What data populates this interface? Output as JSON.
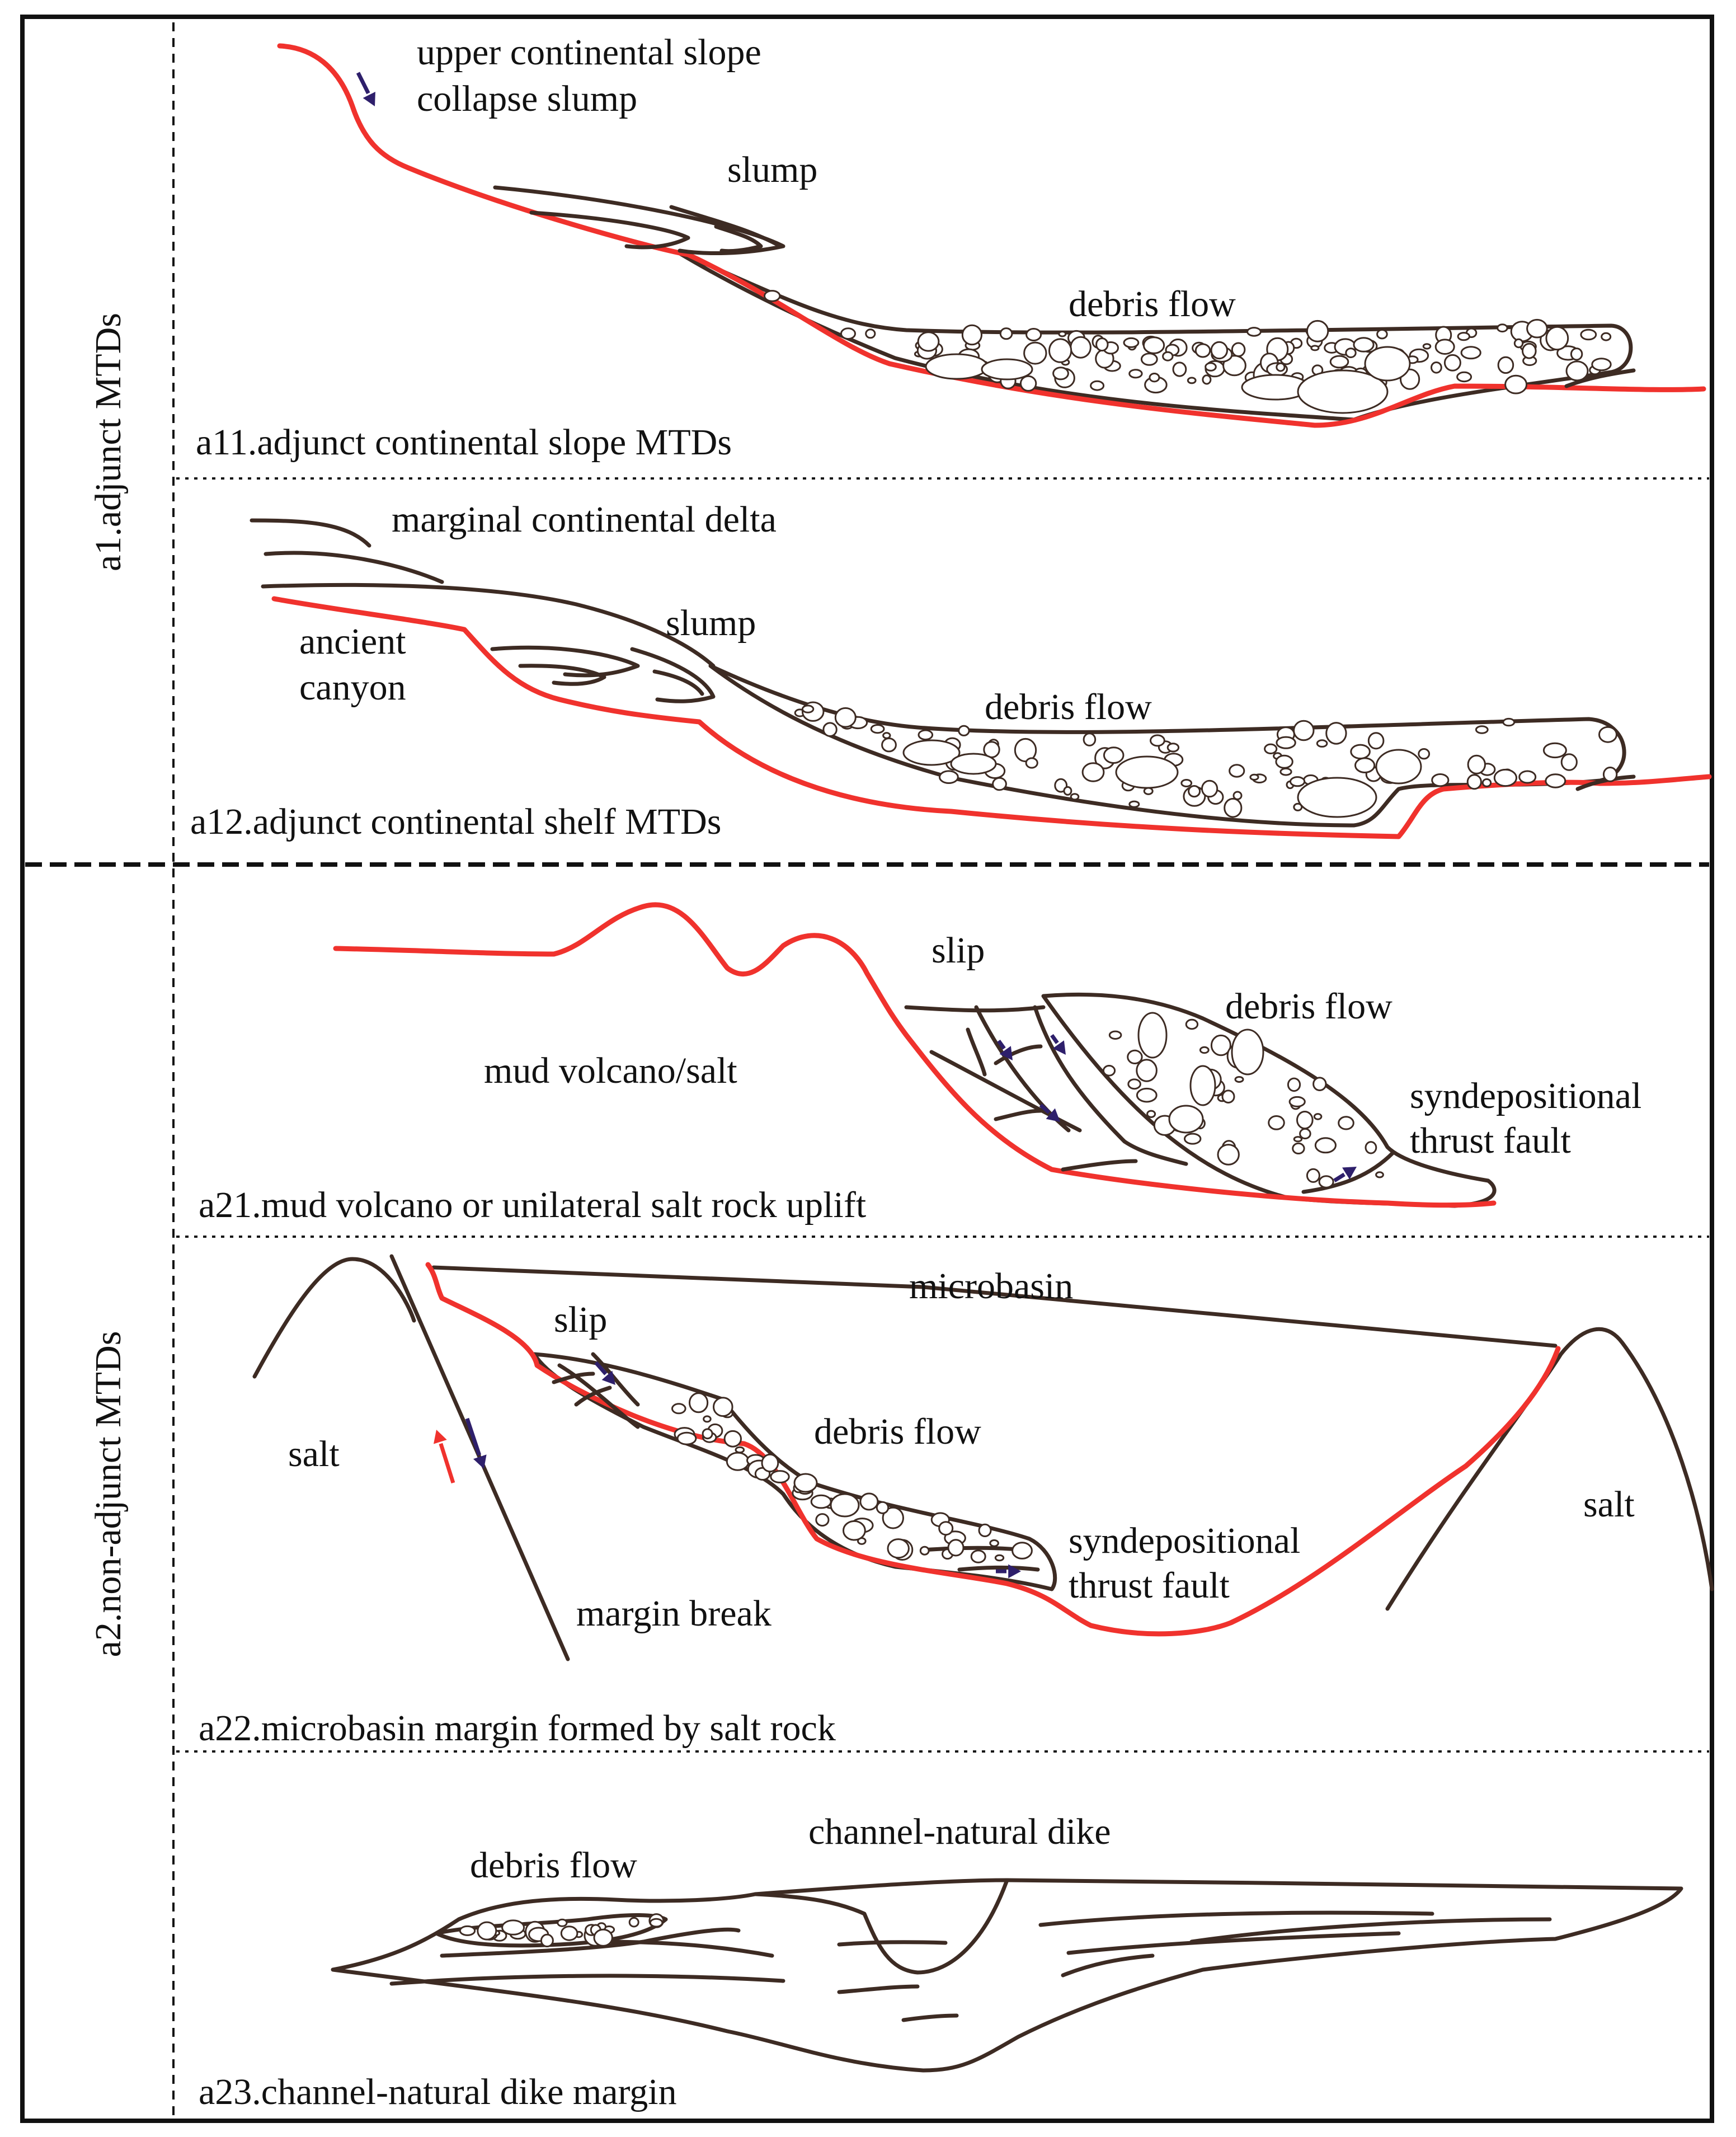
{
  "colors": {
    "basal_surface": "#f0322d",
    "deposit_outline": "#3d2b23",
    "motion_arrow": "#2e1f6b",
    "opposite_arrow": "#f0322d",
    "frame": "#111111"
  },
  "groups": [
    {
      "id": "a1",
      "title": "a1.adjunct MTDs"
    },
    {
      "id": "a2",
      "title": "a2.non-adjunct MTDs"
    }
  ],
  "panels": {
    "a11": {
      "caption": "a11.adjunct continental slope MTDs",
      "labels": {
        "upper_slope_line1": "upper continental slope",
        "upper_slope_line2": "collapse slump",
        "slump": "slump",
        "debris_flow": "debris flow"
      }
    },
    "a12": {
      "caption": "a12.adjunct continental shelf MTDs",
      "labels": {
        "delta": "marginal continental delta",
        "canyon_line1": "ancient",
        "canyon_line2": "canyon",
        "slump": "slump",
        "debris_flow": "debris flow"
      }
    },
    "a21": {
      "caption": "a21.mud volcano or unilateral salt rock uplift",
      "labels": {
        "slip": "slip",
        "debris_flow": "debris flow",
        "mud_volcano": "mud volcano/salt",
        "thrust_line1": "syndepositional",
        "thrust_line2": "thrust fault"
      }
    },
    "a22": {
      "caption": "a22.microbasin margin formed by salt rock",
      "labels": {
        "microbasin": "microbasin",
        "slip": "slip",
        "debris_flow": "debris flow",
        "salt_left": "salt",
        "salt_right": "salt",
        "thrust_line1": "syndepositional",
        "thrust_line2": "thrust fault",
        "margin_break": "margin break"
      }
    },
    "a23": {
      "caption": "a23.channel-natural dike margin",
      "labels": {
        "debris_flow": "debris flow",
        "channel_dike": "channel-natural dike"
      }
    }
  }
}
